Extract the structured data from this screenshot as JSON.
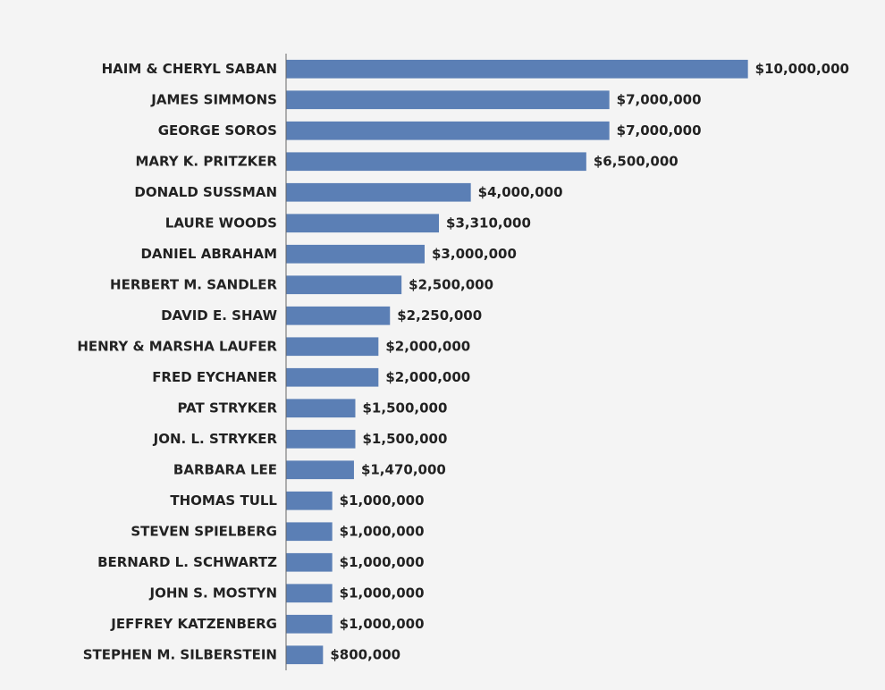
{
  "chart_data": {
    "type": "barh",
    "categories": [
      "HAIM & CHERYL SABAN",
      "JAMES SIMMONS",
      "GEORGE SOROS",
      "MARY K. PRITZKER",
      "DONALD SUSSMAN",
      "LAURE WOODS",
      "DANIEL ABRAHAM",
      "HERBERT M. SANDLER",
      "DAVID E. SHAW",
      "HENRY & MARSHA LAUFER",
      "FRED EYCHANER",
      "PAT STRYKER",
      "JON. L. STRYKER",
      "BARBARA LEE",
      "THOMAS TULL",
      "STEVEN SPIELBERG",
      "BERNARD L. SCHWARTZ",
      "JOHN S. MOSTYN",
      "JEFFREY KATZENBERG",
      "STEPHEN M. SILBERSTEIN"
    ],
    "values": [
      10000000,
      7000000,
      7000000,
      6500000,
      4000000,
      3310000,
      3000000,
      2500000,
      2250000,
      2000000,
      2000000,
      1500000,
      1500000,
      1470000,
      1000000,
      1000000,
      1000000,
      1000000,
      1000000,
      800000
    ],
    "value_labels": [
      "$10,000,000",
      "$7,000,000",
      "$7,000,000",
      "$6,500,000",
      "$4,000,000",
      "$3,310,000",
      "$3,000,000",
      "$2,500,000",
      "$2,250,000",
      "$2,000,000",
      "$2,000,000",
      "$1,500,000",
      "$1,500,000",
      "$1,470,000",
      "$1,000,000",
      "$1,000,000",
      "$1,000,000",
      "$1,000,000",
      "$1,000,000",
      "$800,000"
    ],
    "color": "#5b7fb5",
    "xlim": [
      0,
      12000000
    ]
  }
}
